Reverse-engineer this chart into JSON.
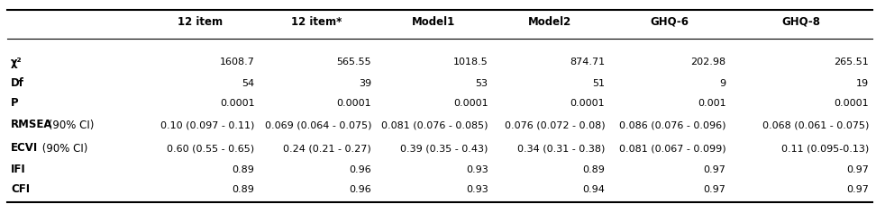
{
  "columns": [
    "",
    "12 item",
    "12 item*",
    "Model1",
    "Model2",
    "GHQ-6",
    "GHQ-8"
  ],
  "rows": [
    [
      "χ²",
      "1608.7",
      "565.55",
      "1018.5",
      "874.71",
      "202.98",
      "265.51"
    ],
    [
      "Df",
      "54",
      "39",
      "53",
      "51",
      "9",
      "19"
    ],
    [
      "P",
      "0.0001",
      "0.0001",
      "0.0001",
      "0.0001",
      "0.001",
      "0.0001"
    ],
    [
      "RMSEA (90% CI)",
      "0.10 (0.097 - 0.11)",
      "0.069 (0.064 - 0.075)",
      "0.081 (0.076 - 0.085)",
      "0.076 (0.072 - 0.08)",
      "0.086 (0.076 - 0.096)",
      "0.068 (0.061 - 0.075)"
    ],
    [
      "ECVI (90% CI)",
      "0.60 (0.55 - 0.65)",
      "0.24 (0.21 - 0.27)",
      "0.39 (0.35 - 0.43)",
      "0.34 (0.31 - 0.38)",
      "0.081 (0.067 - 0.099)",
      "0.11 (0.095-0.13)"
    ],
    [
      "IFI",
      "0.89",
      "0.96",
      "0.93",
      "0.89",
      "0.97",
      "0.97"
    ],
    [
      "CFI",
      "0.89",
      "0.96",
      "0.93",
      "0.94",
      "0.97",
      "0.97"
    ]
  ],
  "background_color": "#ffffff",
  "text_color": "#000000",
  "header_fontsize": 8.5,
  "cell_fontsize": 8.0,
  "fig_width": 9.72,
  "fig_height": 2.28,
  "dpi": 100
}
